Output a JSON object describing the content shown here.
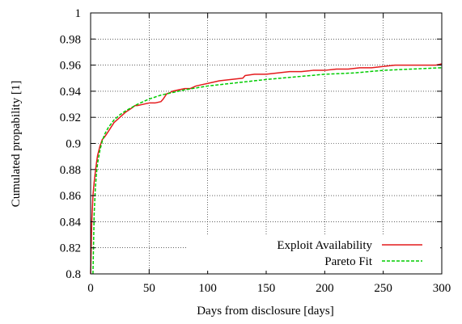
{
  "chart_data": {
    "type": "line",
    "title": "",
    "xlabel": "Days from disclosure [days]",
    "ylabel": "Cumulated propability [1]",
    "xlim": [
      0,
      300
    ],
    "ylim": [
      0.8,
      1.0
    ],
    "xticks": [
      0,
      50,
      100,
      150,
      200,
      250,
      300
    ],
    "yticks": [
      0.8,
      0.82,
      0.84,
      0.86,
      0.88,
      0.9,
      0.92,
      0.94,
      0.96,
      0.98,
      1
    ],
    "xtick_labels": [
      "0",
      "50",
      "100",
      "150",
      "200",
      "250",
      "300"
    ],
    "ytick_labels": [
      "0.8",
      "0.82",
      "0.84",
      "0.86",
      "0.88",
      "0.9",
      "0.92",
      "0.94",
      "0.96",
      "0.98",
      "1"
    ],
    "grid": true,
    "legend_position": "bottom-right",
    "series": [
      {
        "name": "Exploit Availability",
        "color": "#e41a1c",
        "style": "solid",
        "x": [
          0,
          0.5,
          1,
          2,
          3,
          4,
          5,
          6,
          8,
          10,
          12,
          15,
          20,
          25,
          30,
          35,
          38,
          40,
          45,
          50,
          55,
          60,
          62,
          65,
          68,
          70,
          75,
          80,
          85,
          90,
          95,
          100,
          110,
          120,
          130,
          132,
          140,
          150,
          160,
          170,
          180,
          190,
          200,
          210,
          220,
          230,
          240,
          250,
          260,
          270,
          280,
          290,
          295,
          300
        ],
        "y": [
          0.8,
          0.82,
          0.84,
          0.86,
          0.87,
          0.878,
          0.885,
          0.891,
          0.898,
          0.903,
          0.905,
          0.909,
          0.916,
          0.92,
          0.924,
          0.927,
          0.929,
          0.929,
          0.93,
          0.931,
          0.931,
          0.932,
          0.934,
          0.938,
          0.939,
          0.94,
          0.941,
          0.942,
          0.942,
          0.944,
          0.945,
          0.946,
          0.948,
          0.949,
          0.95,
          0.952,
          0.953,
          0.953,
          0.954,
          0.955,
          0.955,
          0.956,
          0.956,
          0.957,
          0.957,
          0.958,
          0.958,
          0.959,
          0.96,
          0.96,
          0.96,
          0.96,
          0.96,
          0.961
        ]
      },
      {
        "name": "Pareto Fit",
        "color": "#00cc00",
        "style": "dashed",
        "x": [
          2,
          3,
          4,
          5,
          6,
          8,
          10,
          12,
          15,
          20,
          25,
          30,
          40,
          50,
          60,
          70,
          80,
          100,
          120,
          150,
          175,
          200,
          225,
          250,
          275,
          300
        ],
        "y": [
          0.8,
          0.845,
          0.865,
          0.877,
          0.885,
          0.895,
          0.902,
          0.907,
          0.912,
          0.918,
          0.922,
          0.925,
          0.93,
          0.934,
          0.937,
          0.939,
          0.941,
          0.944,
          0.946,
          0.949,
          0.951,
          0.953,
          0.954,
          0.956,
          0.957,
          0.958
        ]
      }
    ]
  }
}
